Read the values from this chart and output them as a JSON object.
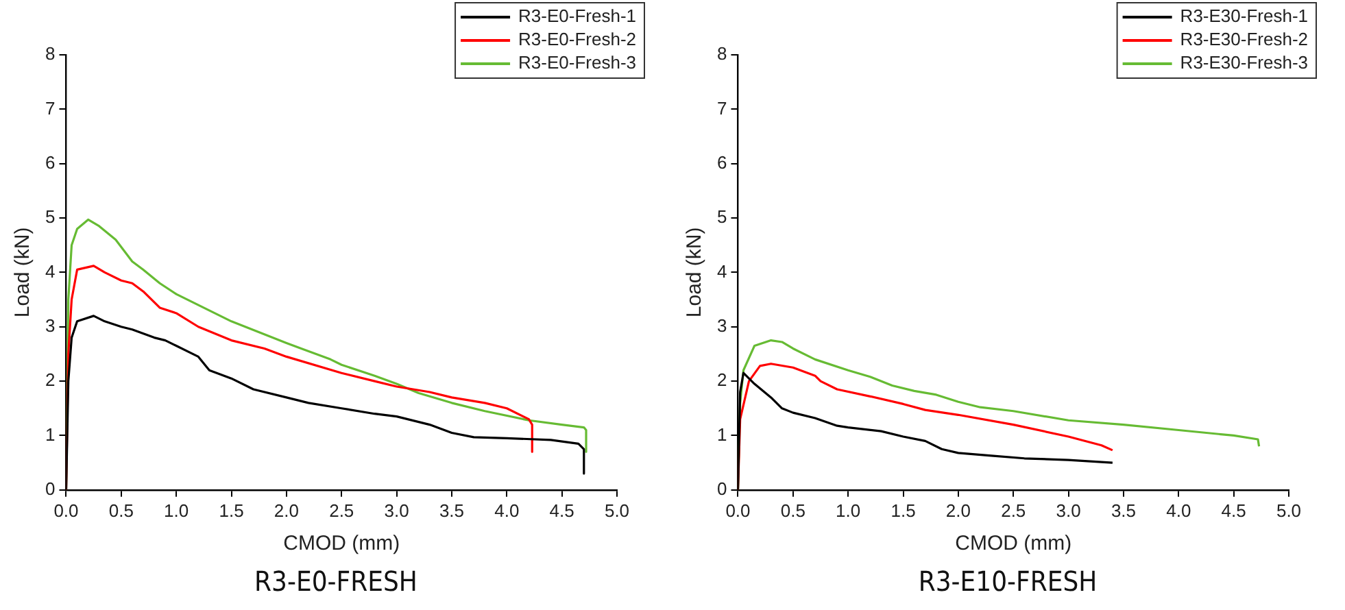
{
  "chart_data": [
    {
      "type": "line",
      "xlabel": "CMOD (mm)",
      "ylabel": "Load (kN)",
      "annotations": [
        "R3-E0-FRESH"
      ],
      "legend": "top right",
      "grid": false,
      "line_style": "solid",
      "marker": "none",
      "xlim": [
        0,
        5
      ],
      "xticks": [
        {
          "value": 0,
          "label": "0.0"
        },
        0.5,
        {
          "value": 1,
          "label": "1.0"
        },
        1.5,
        {
          "value": 2,
          "label": "2.0"
        },
        2.5,
        {
          "value": 3,
          "label": "3.0"
        },
        3.5,
        {
          "value": 4,
          "label": "4.0"
        },
        4.5,
        {
          "value": 5,
          "label": "5.0"
        }
      ],
      "ylim": [
        0,
        8
      ],
      "yticks": [
        0,
        1,
        2,
        3,
        4,
        5,
        6,
        7,
        8
      ],
      "series": [
        {
          "name": "R3-E0-Fresh-1",
          "color": "#000000",
          "x": [
            0,
            0.02,
            0.05,
            0.1,
            0.25,
            0.35,
            0.5,
            0.6,
            0.8,
            0.9,
            1.0,
            1.2,
            1.3,
            1.5,
            1.7,
            2.0,
            2.2,
            2.5,
            2.8,
            3.0,
            3.2,
            3.3,
            3.5,
            3.7,
            4.0,
            4.4,
            4.65,
            4.7,
            4.7
          ],
          "values": [
            0,
            2.0,
            2.8,
            3.1,
            3.2,
            3.1,
            3.0,
            2.95,
            2.8,
            2.75,
            2.65,
            2.45,
            2.2,
            2.05,
            1.85,
            1.7,
            1.6,
            1.5,
            1.4,
            1.35,
            1.25,
            1.2,
            1.05,
            0.97,
            0.95,
            0.92,
            0.85,
            0.75,
            0.3
          ]
        },
        {
          "name": "R3-E0-Fresh-2",
          "color": "#ff0000",
          "x": [
            0,
            0.02,
            0.05,
            0.1,
            0.25,
            0.35,
            0.5,
            0.6,
            0.7,
            0.85,
            1.0,
            1.2,
            1.5,
            1.8,
            2.0,
            2.5,
            2.8,
            3.0,
            3.3,
            3.5,
            3.8,
            4.0,
            4.2,
            4.23,
            4.23
          ],
          "values": [
            0,
            2.5,
            3.5,
            4.05,
            4.12,
            4.0,
            3.85,
            3.8,
            3.65,
            3.35,
            3.25,
            3.0,
            2.75,
            2.6,
            2.45,
            2.15,
            2.0,
            1.9,
            1.8,
            1.7,
            1.6,
            1.5,
            1.3,
            1.2,
            0.7
          ]
        },
        {
          "name": "R3-E0-Fresh-3",
          "color": "#66bb33",
          "x": [
            0,
            0.02,
            0.05,
            0.1,
            0.2,
            0.3,
            0.45,
            0.6,
            0.7,
            0.85,
            1.0,
            1.5,
            2.0,
            2.4,
            2.5,
            2.8,
            3.0,
            3.2,
            3.5,
            3.8,
            4.2,
            4.5,
            4.7,
            4.72,
            4.72
          ],
          "values": [
            0,
            3.5,
            4.5,
            4.8,
            4.97,
            4.85,
            4.6,
            4.2,
            4.05,
            3.8,
            3.6,
            3.1,
            2.7,
            2.4,
            2.3,
            2.1,
            1.95,
            1.78,
            1.6,
            1.45,
            1.28,
            1.2,
            1.15,
            1.1,
            0.7
          ]
        }
      ]
    },
    {
      "type": "line",
      "xlabel": "CMOD (mm)",
      "ylabel": "Load (kN)",
      "annotations": [
        "R3-E10-FRESH"
      ],
      "legend": "top right",
      "grid": false,
      "line_style": "solid",
      "marker": "none",
      "xlim": [
        0,
        5
      ],
      "xticks": [
        {
          "value": 0,
          "label": "0.0"
        },
        0.5,
        {
          "value": 1,
          "label": "1.0"
        },
        1.5,
        {
          "value": 2,
          "label": "2.0"
        },
        2.5,
        {
          "value": 3,
          "label": "3.0"
        },
        3.5,
        {
          "value": 4,
          "label": "4.0"
        },
        4.5,
        {
          "value": 5,
          "label": "5.0"
        }
      ],
      "ylim": [
        0,
        8
      ],
      "yticks": [
        0,
        1,
        2,
        3,
        4,
        5,
        6,
        7,
        8
      ],
      "series": [
        {
          "name": "R3-E30-Fresh-1",
          "color": "#000000",
          "x": [
            0,
            0.02,
            0.05,
            0.15,
            0.3,
            0.4,
            0.5,
            0.7,
            0.9,
            1.0,
            1.3,
            1.5,
            1.7,
            1.85,
            2.0,
            2.3,
            2.6,
            3.0,
            3.4
          ],
          "values": [
            0,
            1.8,
            2.15,
            1.95,
            1.7,
            1.5,
            1.42,
            1.32,
            1.18,
            1.15,
            1.08,
            0.98,
            0.9,
            0.75,
            0.68,
            0.63,
            0.58,
            0.55,
            0.5
          ]
        },
        {
          "name": "R3-E30-Fresh-2",
          "color": "#ff0000",
          "x": [
            0,
            0.02,
            0.1,
            0.2,
            0.3,
            0.5,
            0.7,
            0.75,
            0.9,
            1.2,
            1.5,
            1.7,
            2.0,
            2.5,
            3.0,
            3.3,
            3.4
          ],
          "values": [
            0,
            1.3,
            2.0,
            2.28,
            2.32,
            2.25,
            2.1,
            2.0,
            1.85,
            1.72,
            1.58,
            1.47,
            1.38,
            1.2,
            0.98,
            0.82,
            0.73
          ]
        },
        {
          "name": "R3-E30-Fresh-3",
          "color": "#66bb33",
          "x": [
            0,
            0.02,
            0.05,
            0.15,
            0.3,
            0.4,
            0.5,
            0.7,
            1.0,
            1.2,
            1.4,
            1.6,
            1.8,
            2.0,
            2.2,
            2.5,
            3.0,
            3.5,
            4.0,
            4.5,
            4.72,
            4.73
          ],
          "values": [
            0,
            1.6,
            2.2,
            2.65,
            2.75,
            2.72,
            2.6,
            2.4,
            2.2,
            2.08,
            1.92,
            1.82,
            1.75,
            1.62,
            1.52,
            1.45,
            1.28,
            1.2,
            1.1,
            1.0,
            0.93,
            0.8
          ]
        }
      ]
    }
  ]
}
